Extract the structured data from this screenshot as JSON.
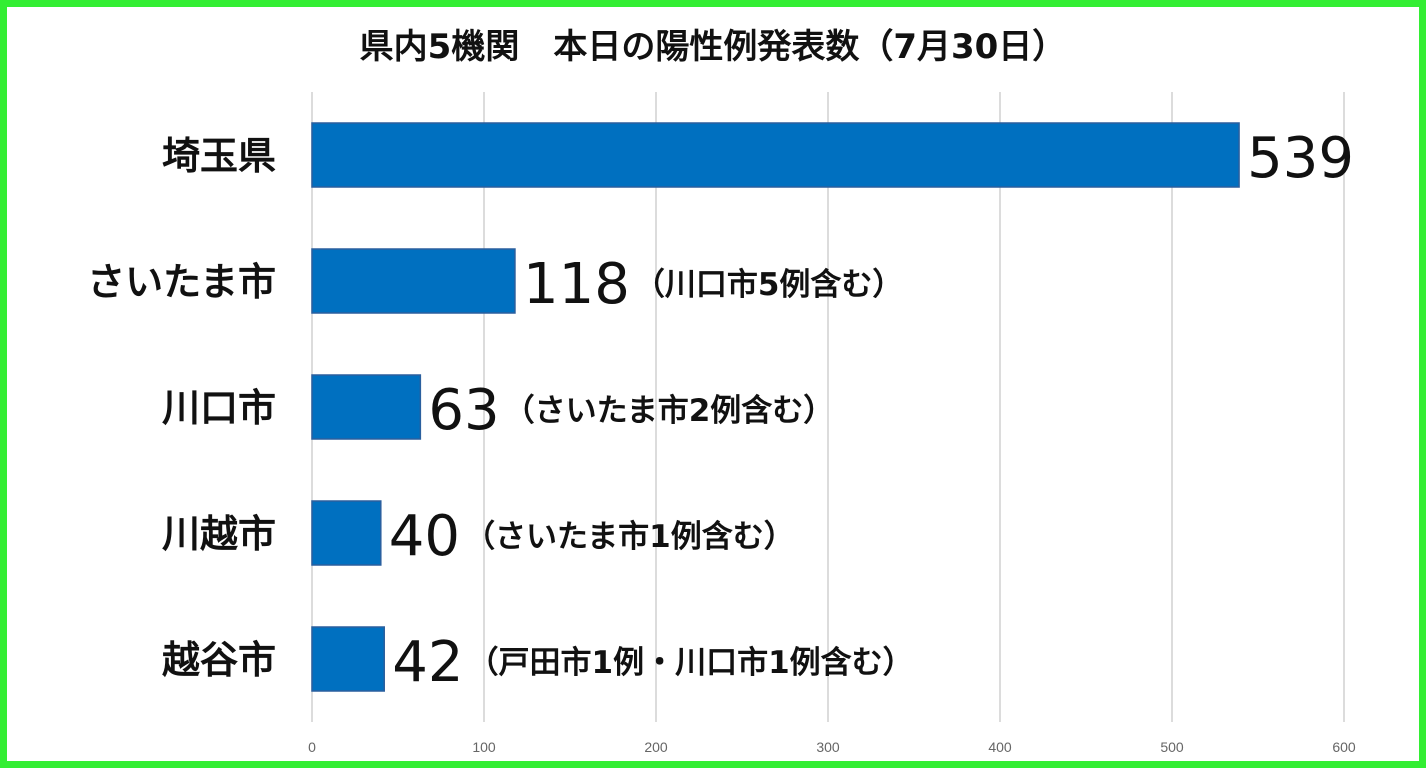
{
  "chart_data": {
    "type": "bar",
    "orientation": "horizontal",
    "title": "県内5機関　本日の陽性例発表数（7月30日）",
    "xlabel": "",
    "ylabel": "",
    "categories": [
      "埼玉県",
      "さいたま市",
      "川口市",
      "川越市",
      "越谷市"
    ],
    "values": [
      539,
      118,
      63,
      40,
      42
    ],
    "value_labels": [
      "539",
      "118",
      "63",
      "40",
      "42"
    ],
    "notes": [
      "",
      "（川口市5例含む）",
      "（さいたま市2例含む）",
      "（さいたま市1例含む）",
      "（戸田市1例・川口市1例含む）"
    ],
    "xlim": [
      0,
      600
    ],
    "xticks": [
      "0",
      "100",
      "200",
      "300",
      "400",
      "500",
      "600"
    ],
    "grid": true,
    "legend": "none",
    "bar_color": "#0070c0",
    "frame_color": "#33ee33"
  }
}
